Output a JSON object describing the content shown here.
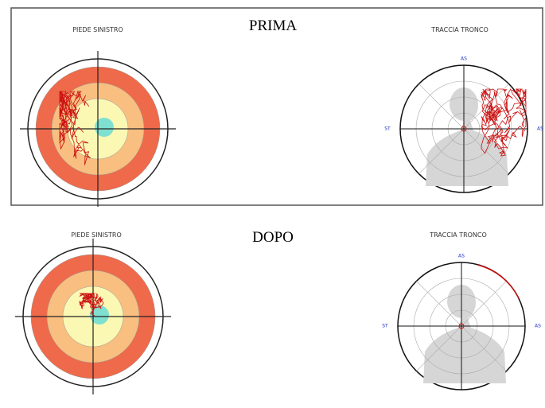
{
  "panels": [
    {
      "label": "PRIMA",
      "left_title": "PIEDE SINISTRO",
      "right_title": "TRACCIA TRONCO",
      "axis_labels": {
        "top": "AS",
        "left": "ST",
        "right": "AS"
      }
    },
    {
      "label": "DOPO",
      "left_title": "PIEDE SINISTRO",
      "right_title": "TRACCIA TRONCO",
      "axis_labels": {
        "top": "AS",
        "left": "ST",
        "right": "AS"
      }
    }
  ]
}
